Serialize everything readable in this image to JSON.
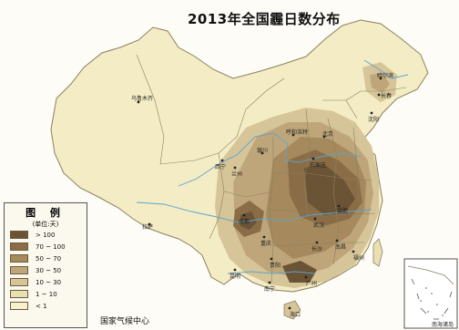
{
  "title": "2013年全国霾日数分布",
  "legend": {
    "title": "图 例",
    "unit": "(单位:天)",
    "items": [
      {
        "label": "> 100",
        "color": "#6b5335"
      },
      {
        "label": "70 ~ 100",
        "color": "#8a6d46"
      },
      {
        "label": "50 ~ 70",
        "color": "#a68a5e"
      },
      {
        "label": "30 ~ 50",
        "color": "#bfa67a"
      },
      {
        "label": "10 ~ 30",
        "color": "#d6c598"
      },
      {
        "label": "1 ~ 10",
        "color": "#ebe0b4"
      },
      {
        "label": "< 1",
        "color": "#f7f1cf"
      }
    ]
  },
  "credit": "国家气候中心",
  "inset_label": "南海诸岛",
  "cities": [
    {
      "id": "wulumuqi",
      "name": "乌鲁木齐"
    },
    {
      "id": "lasa",
      "name": "拉萨"
    },
    {
      "id": "xining",
      "name": "西宁"
    },
    {
      "id": "lanzhou",
      "name": "兰州"
    },
    {
      "id": "yinchuan",
      "name": "银川"
    },
    {
      "id": "huhehaote",
      "name": "呼和浩特"
    },
    {
      "id": "beijing",
      "name": "北京"
    },
    {
      "id": "shijiazhuang",
      "name": "石家庄"
    },
    {
      "id": "shenyang",
      "name": "沈阳"
    },
    {
      "id": "haerbin",
      "name": "哈尔滨"
    },
    {
      "id": "changchun",
      "name": "长春"
    },
    {
      "id": "chengdu",
      "name": "成都"
    },
    {
      "id": "chongqing",
      "name": "重庆"
    },
    {
      "id": "wuhan",
      "name": "武汉"
    },
    {
      "id": "hefei",
      "name": "合肥"
    },
    {
      "id": "nanchang",
      "name": "南昌"
    },
    {
      "id": "changsha",
      "name": "长沙"
    },
    {
      "id": "guiyang",
      "name": "贵阳"
    },
    {
      "id": "kunming",
      "name": "昆明"
    },
    {
      "id": "nanning",
      "name": "南宁"
    },
    {
      "id": "guangzhou",
      "name": "广州"
    },
    {
      "id": "fuzhou",
      "name": "福州"
    },
    {
      "id": "haikou",
      "name": "海口"
    }
  ],
  "colors": {
    "background": "#fdfcf6",
    "land_base": "#f4ecc4",
    "river": "#5aa4cf",
    "border": "#8a8060"
  }
}
